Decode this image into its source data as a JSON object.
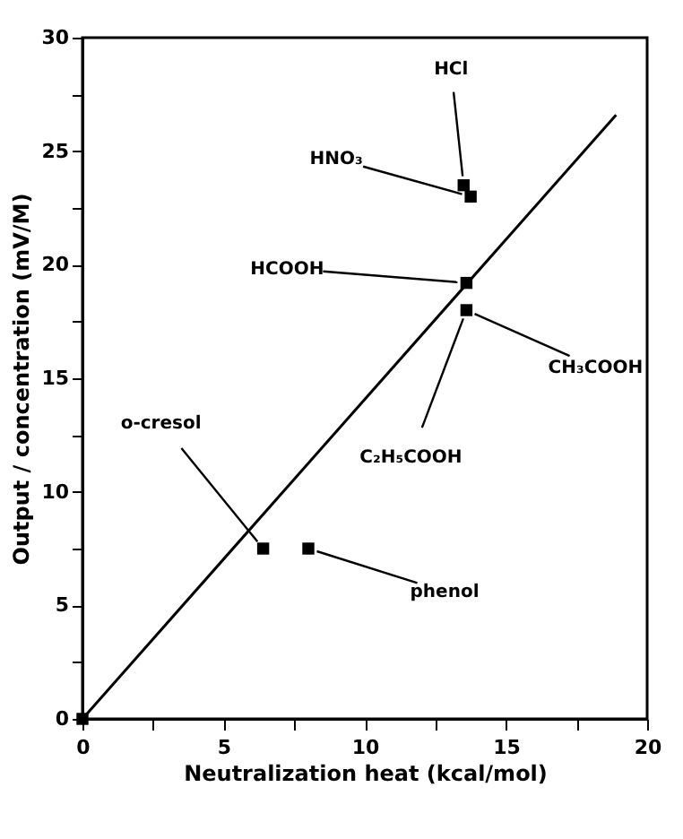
{
  "chart_data": {
    "type": "scatter",
    "xlabel": "Neutralization heat  (kcal/mol)",
    "ylabel": "Output / concentration  (mV/M)",
    "xlim": [
      0,
      20
    ],
    "ylim": [
      0,
      30
    ],
    "xticks": [
      0,
      {
        "value": 2.5,
        "label": null
      },
      5,
      {
        "value": 7.5,
        "label": null
      },
      10,
      {
        "value": 12.5,
        "label": null
      },
      15,
      {
        "value": 17.5,
        "label": null
      },
      20
    ],
    "yticks": [
      0,
      {
        "value": 2.5,
        "label": null
      },
      5,
      {
        "value": 7.5,
        "label": null
      },
      10,
      {
        "value": 12.5,
        "label": null
      },
      15,
      {
        "value": 17.5,
        "label": null
      },
      20,
      {
        "value": 22.5,
        "label": null
      },
      25,
      {
        "value": 27.5,
        "label": null
      },
      30
    ],
    "grid": false,
    "series": [
      {
        "type": "scatter",
        "color": "#000000",
        "marker": "square",
        "x": [
          0,
          6.4,
          8.0,
          13.5,
          13.75,
          13.6,
          13.6
        ],
        "values": [
          0,
          7.5,
          7.5,
          23.5,
          23.0,
          19.2,
          18.0
        ]
      },
      {
        "type": "line",
        "color": "#000000",
        "line_style": "solid",
        "marker": "none",
        "x": [
          0,
          18.9
        ],
        "values": [
          0,
          26.6
        ]
      }
    ],
    "annotations": [
      {
        "text": "HCl",
        "x": 13.5,
        "y": 23.5
      },
      {
        "text": "HNO₃",
        "x": 13.75,
        "y": 23.0
      },
      {
        "text": "HCOOH",
        "x": 13.6,
        "y": 19.2
      },
      {
        "text": "CH₃COOH",
        "x": 13.6,
        "y": 18.0
      },
      {
        "text": "C₂H₅COOH",
        "x": 13.6,
        "y": 18.0
      },
      {
        "text": "o-cresol",
        "x": 6.4,
        "y": 7.5
      },
      {
        "text": "phenol",
        "x": 8.0,
        "y": 7.5
      }
    ]
  }
}
